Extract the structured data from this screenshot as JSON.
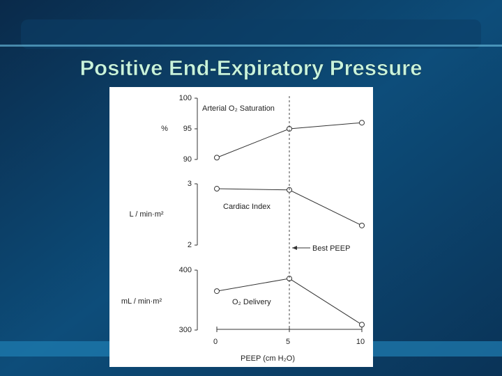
{
  "slide_title": "Positive End-Expiratory Pressure",
  "chart_data": [
    {
      "type": "line",
      "title": "Arterial O₂ Saturation",
      "y_label": "%",
      "x": [
        0,
        5,
        10
      ],
      "values": [
        90.3,
        95,
        96
      ],
      "color": "#333333",
      "ylim": [
        90,
        100
      ],
      "yticks": [
        90,
        95,
        100
      ]
    },
    {
      "type": "line",
      "title": "Cardiac Index",
      "y_label": "L / min·m²",
      "x": [
        0,
        5,
        10
      ],
      "values": [
        2.92,
        2.9,
        2.32
      ],
      "color": "#333333",
      "ylim": [
        2,
        3
      ],
      "yticks": [
        2,
        3
      ]
    },
    {
      "type": "line",
      "title": "O₂ Delivery",
      "y_label": "mL / min·m²",
      "x": [
        0,
        5,
        10
      ],
      "values": [
        365,
        386,
        309
      ],
      "color": "#333333",
      "ylim": [
        300,
        400
      ],
      "yticks": [
        300,
        400
      ],
      "x_label": "PEEP (cm H₂O)",
      "xlim": [
        0,
        10
      ],
      "xticks": [
        0,
        5,
        10
      ],
      "annotation": "Best PEEP"
    }
  ]
}
